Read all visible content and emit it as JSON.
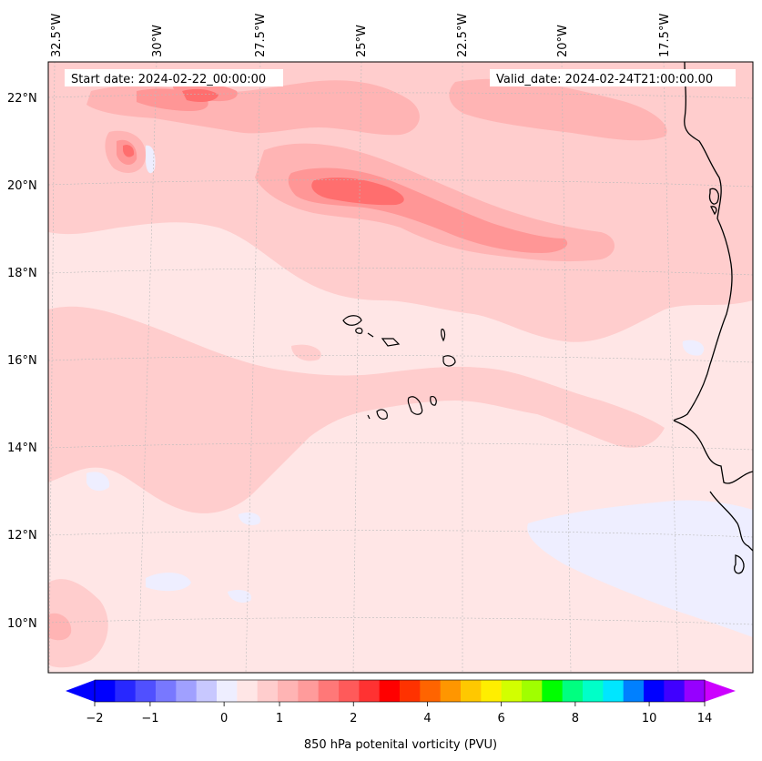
{
  "header": {
    "start_date": "Start date: 2024-02-22_00:00:00",
    "valid_date": "Valid_date: 2024-02-24T21:00:00.00"
  },
  "axes": {
    "longitude_labels": [
      "32.5°W",
      "30°W",
      "27.5°W",
      "25°W",
      "22.5°W",
      "20°W",
      "17.5°W"
    ],
    "latitude_labels": [
      "22°N",
      "20°N",
      "18°N",
      "16°N",
      "14°N",
      "12°N",
      "10°N"
    ]
  },
  "colorbar": {
    "label": "850 hPa potenital vorticity (PVU)",
    "tick_labels": [
      "−2",
      "−1",
      "0",
      "1",
      "2",
      "4",
      "6",
      "8",
      "10",
      "14"
    ],
    "colors": [
      "#0000ff",
      "#2828ff",
      "#5050ff",
      "#7878ff",
      "#a0a0ff",
      "#c8c8ff",
      "#eeeeff",
      "#ffe6e6",
      "#ffcdcd",
      "#ffb4b4",
      "#ff9b9b",
      "#ff7878",
      "#ff5a5a",
      "#ff3232",
      "#ff0000",
      "#ff3200",
      "#ff6400",
      "#ff9600",
      "#ffc800",
      "#ffee00",
      "#d2ff00",
      "#a0ff00",
      "#00ff00",
      "#00ff80",
      "#00ffc8",
      "#00e6ff",
      "#0080ff",
      "#0000ff",
      "#4000ff",
      "#9600ff"
    ],
    "extend_low_color": "#0000ff",
    "extend_high_color": "#cc00ff"
  },
  "palette": {
    "background_field": "#ffe6e6",
    "level_1": "#ffcdcd",
    "level_2": "#ffb4b4",
    "level_3": "#ff9696",
    "level_4": "#ff6e6e",
    "negative": "#eeeeff",
    "coastline": "#000000",
    "grid": "#bbbbbb"
  }
}
